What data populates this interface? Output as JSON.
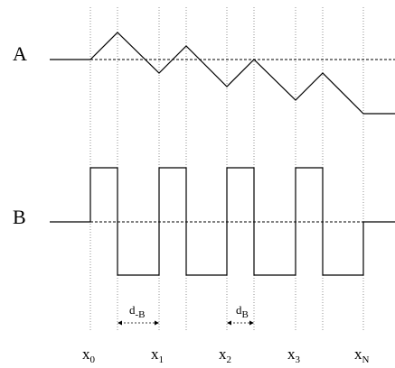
{
  "signals": {
    "a_label": "A",
    "b_label": "B"
  },
  "annotations": {
    "d_minus_b": {
      "base": "d",
      "sub": "-B"
    },
    "d_b": {
      "base": "d",
      "sub": "B"
    }
  },
  "x_labels": [
    {
      "base": "x",
      "sub": "0"
    },
    {
      "base": "x",
      "sub": "1"
    },
    {
      "base": "x",
      "sub": "2"
    },
    {
      "base": "x",
      "sub": "3"
    },
    {
      "base": "x",
      "sub": "N"
    }
  ]
}
